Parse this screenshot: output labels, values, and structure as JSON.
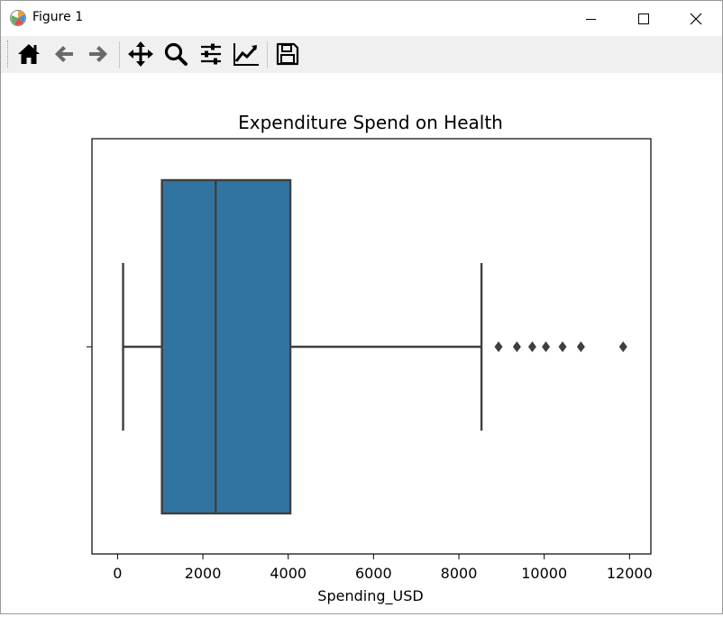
{
  "window": {
    "title": "Figure 1",
    "controls": {
      "minimize": "minimize",
      "maximize": "maximize",
      "close": "close"
    }
  },
  "toolbar": {
    "buttons": [
      {
        "name": "home-button",
        "icon": "home-icon"
      },
      {
        "name": "back-button",
        "icon": "arrow-left-icon"
      },
      {
        "name": "forward-button",
        "icon": "arrow-right-icon"
      },
      {
        "name": "pan-button",
        "icon": "move-icon"
      },
      {
        "name": "zoom-button",
        "icon": "magnifier-icon"
      },
      {
        "name": "configure-subplots-button",
        "icon": "sliders-icon"
      },
      {
        "name": "edit-axis-button",
        "icon": "line-chart-icon"
      },
      {
        "name": "save-button",
        "icon": "floppy-disk-icon"
      }
    ]
  },
  "chart_data": {
    "type": "box",
    "title": "Expenditure Spend on Health",
    "xlabel": "Spending_USD",
    "ylabel": "",
    "xlim": [
      -600,
      12500
    ],
    "xticks": [
      0,
      2000,
      4000,
      6000,
      8000,
      10000,
      12000
    ],
    "xtick_labels": [
      "0",
      "2000",
      "4000",
      "6000",
      "8000",
      "10000",
      "12000"
    ],
    "orientation": "horizontal",
    "box": {
      "whisker_low": 130,
      "q1": 1040,
      "median": 2300,
      "q3": 4050,
      "whisker_high": 8530
    },
    "outliers": [
      8930,
      9360,
      9720,
      10040,
      10430,
      10860,
      11850
    ],
    "color": "#3274a1",
    "line_color": "#3f3f3f",
    "grid": false
  }
}
